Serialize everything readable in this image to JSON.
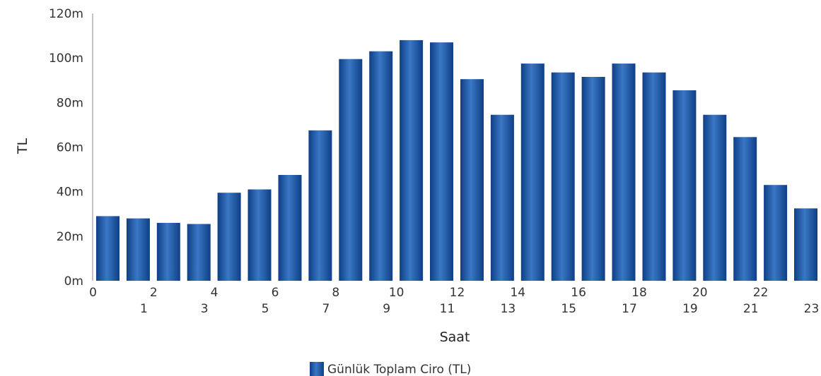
{
  "chart_data": {
    "type": "bar",
    "title": "",
    "xlabel": "Saat",
    "ylabel": "TL",
    "categories": [
      "0",
      "1",
      "2",
      "3",
      "4",
      "5",
      "6",
      "7",
      "8",
      "9",
      "10",
      "11",
      "12",
      "13",
      "14",
      "15",
      "16",
      "17",
      "18",
      "19",
      "20",
      "21",
      "22",
      "23"
    ],
    "series": [
      {
        "name": "Günlük Toplam Ciro (TL)",
        "values": [
          29,
          28,
          26,
          25.5,
          39.5,
          41,
          47.5,
          67.5,
          99.5,
          103,
          108,
          107,
          90.5,
          74.5,
          97.5,
          93.5,
          91.5,
          97.5,
          93.5,
          85.5,
          74.5,
          64.5,
          43,
          32.5
        ]
      }
    ],
    "ylim": [
      0,
      120
    ],
    "yticks": [
      0,
      20,
      40,
      60,
      80,
      100,
      120
    ],
    "ytick_labels": [
      "0m",
      "20m",
      "40m",
      "60m",
      "80m",
      "100m",
      "120m"
    ],
    "grid": false,
    "legend": "bottom-center",
    "colors": {
      "bar_dark": "#0f3f86",
      "bar_mid": "#3a77c4",
      "bar_light": "#8fb6e6",
      "axis": "#8a8a8a"
    }
  }
}
